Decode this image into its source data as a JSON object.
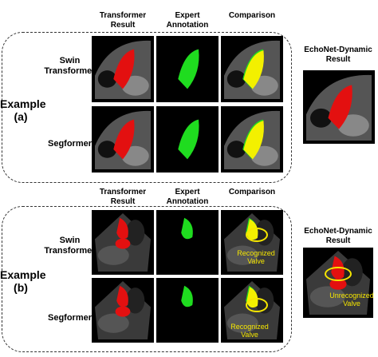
{
  "panels": [
    {
      "column_headers": [
        [
          "Transformer",
          "Result"
        ],
        [
          "Expert",
          "Annotation"
        ],
        [
          "Comparison"
        ]
      ],
      "rows": [
        [
          "Swin",
          "Transformer"
        ],
        [
          "Segformer"
        ]
      ],
      "example": [
        "Example",
        "(a)"
      ],
      "echonet_header": [
        "EchoNet-Dynamic",
        "Result"
      ]
    },
    {
      "column_headers": [
        [
          "Transformer",
          "Result"
        ],
        [
          "Expert",
          "Annotation"
        ],
        [
          "Comparison"
        ]
      ],
      "rows": [
        [
          "Swin",
          "Transformer"
        ],
        [
          "Segformer"
        ]
      ],
      "example": [
        "Example",
        "(b)"
      ],
      "echonet_header": [
        "EchoNet-Dynamic",
        "Result"
      ],
      "comparison_labels": [
        [
          "Recognized",
          "Valve"
        ],
        [
          "Recognized",
          "Valve"
        ]
      ],
      "echonet_label": [
        "Unrecognized",
        "Valve"
      ]
    }
  ]
}
